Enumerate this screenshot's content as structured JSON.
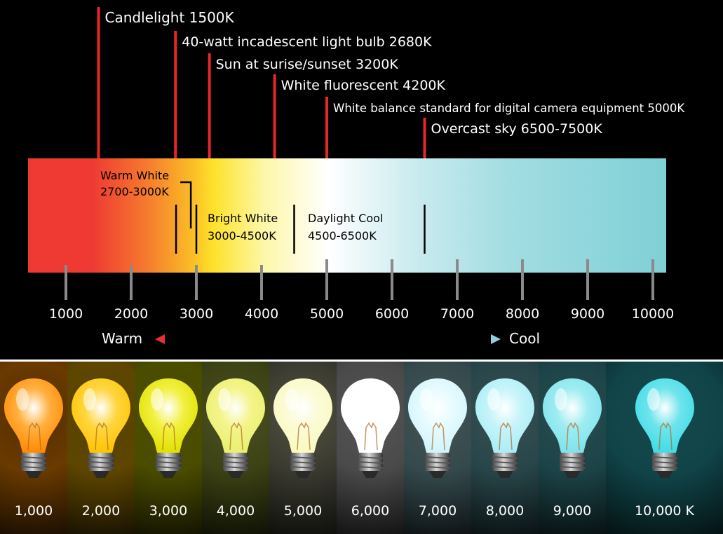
{
  "title": "",
  "scale": {
    "min": 1000,
    "max": 10000,
    "ticks": [
      "1000",
      "2000",
      "3000",
      "4000",
      "5000",
      "6000",
      "7000",
      "8000",
      "9000",
      "10000"
    ],
    "warm_label": "Warm",
    "cool_label": "Cool",
    "arrow_warm_color": "#e8302e",
    "arrow_cool_color": "#8fd0e0"
  },
  "annotations": [
    {
      "text": "Candlelight 1500K",
      "kelvin": 1500
    },
    {
      "text": "40-watt incadescent light bulb 2680K",
      "kelvin": 2680
    },
    {
      "text": "Sun at surise/sunset 3200K",
      "kelvin": 3200
    },
    {
      "text": "White fluorescent 4200K",
      "kelvin": 4200
    },
    {
      "text": "White balance standard for digital camera equipment 5000K",
      "kelvin": 5000
    },
    {
      "text": "Overcast sky 6500-7500K",
      "kelvin": 6500
    }
  ],
  "ranges": [
    {
      "name": "Warm White",
      "range": "2700-3000K",
      "start": 2700,
      "end": 3000
    },
    {
      "name": "Bright White",
      "range": "3000-4500K",
      "start": 3000,
      "end": 4500
    },
    {
      "name": "Daylight Cool",
      "range": "4500-6500K",
      "start": 4500,
      "end": 6500
    }
  ],
  "bulbs": [
    {
      "label": "1,000",
      "bulb_color": "#ffb040",
      "glow": "#ff8a00",
      "bg": "#6a3a00"
    },
    {
      "label": "2,000",
      "bulb_color": "#ffd640",
      "glow": "#ffc400",
      "bg": "#5e4600"
    },
    {
      "label": "3,000",
      "bulb_color": "#f2f040",
      "glow": "#e0e000",
      "bg": "#4a4c00"
    },
    {
      "label": "4,000",
      "bulb_color": "#f4f48a",
      "glow": "#e8f070",
      "bg": "#3c4214"
    },
    {
      "label": "5,000",
      "bulb_color": "#fbfbd6",
      "glow": "#fafac0",
      "bg": "#3a3a30"
    },
    {
      "label": "6,000",
      "bulb_color": "#ffffff",
      "glow": "#ffffff",
      "bg": "#4a4a4a"
    },
    {
      "label": "7,000",
      "bulb_color": "#e6fbff",
      "glow": "#d0f4fc",
      "bg": "#354a4e"
    },
    {
      "label": "8,000",
      "bulb_color": "#c6f4fa",
      "glow": "#a8eef6",
      "bg": "#28464a"
    },
    {
      "label": "9,000",
      "bulb_color": "#9eecf2",
      "glow": "#80e2ec",
      "bg": "#1c4448"
    },
    {
      "label": "10,000 K",
      "bulb_color": "#6ee4ec",
      "glow": "#40dce6",
      "bg": "#104448"
    }
  ]
}
